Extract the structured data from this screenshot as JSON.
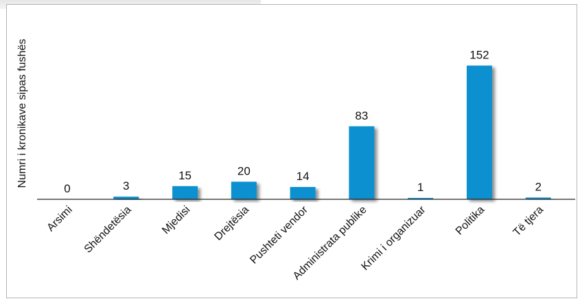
{
  "chart_data": {
    "type": "bar",
    "ylabel": "Numri i kronikave sipas fushës",
    "categories": [
      "Arsimi",
      "Shëndetësia",
      "Mjedisi",
      "Drejtësia",
      "Pushteti vendor",
      "Administrata publike",
      "Krimi i organizuar",
      "Politika",
      "Të tjera"
    ],
    "values": [
      0,
      3,
      15,
      20,
      14,
      83,
      1,
      152,
      2
    ],
    "data_labels": [
      "0",
      "3",
      "15",
      "20",
      "14",
      "83",
      "1",
      "152",
      "2"
    ],
    "ylim": [
      0,
      160
    ],
    "grid": false,
    "legend": "none",
    "bar_color": "#0a90d0",
    "shadow_color": "#b8b8b8",
    "axis_color": "#222222"
  }
}
